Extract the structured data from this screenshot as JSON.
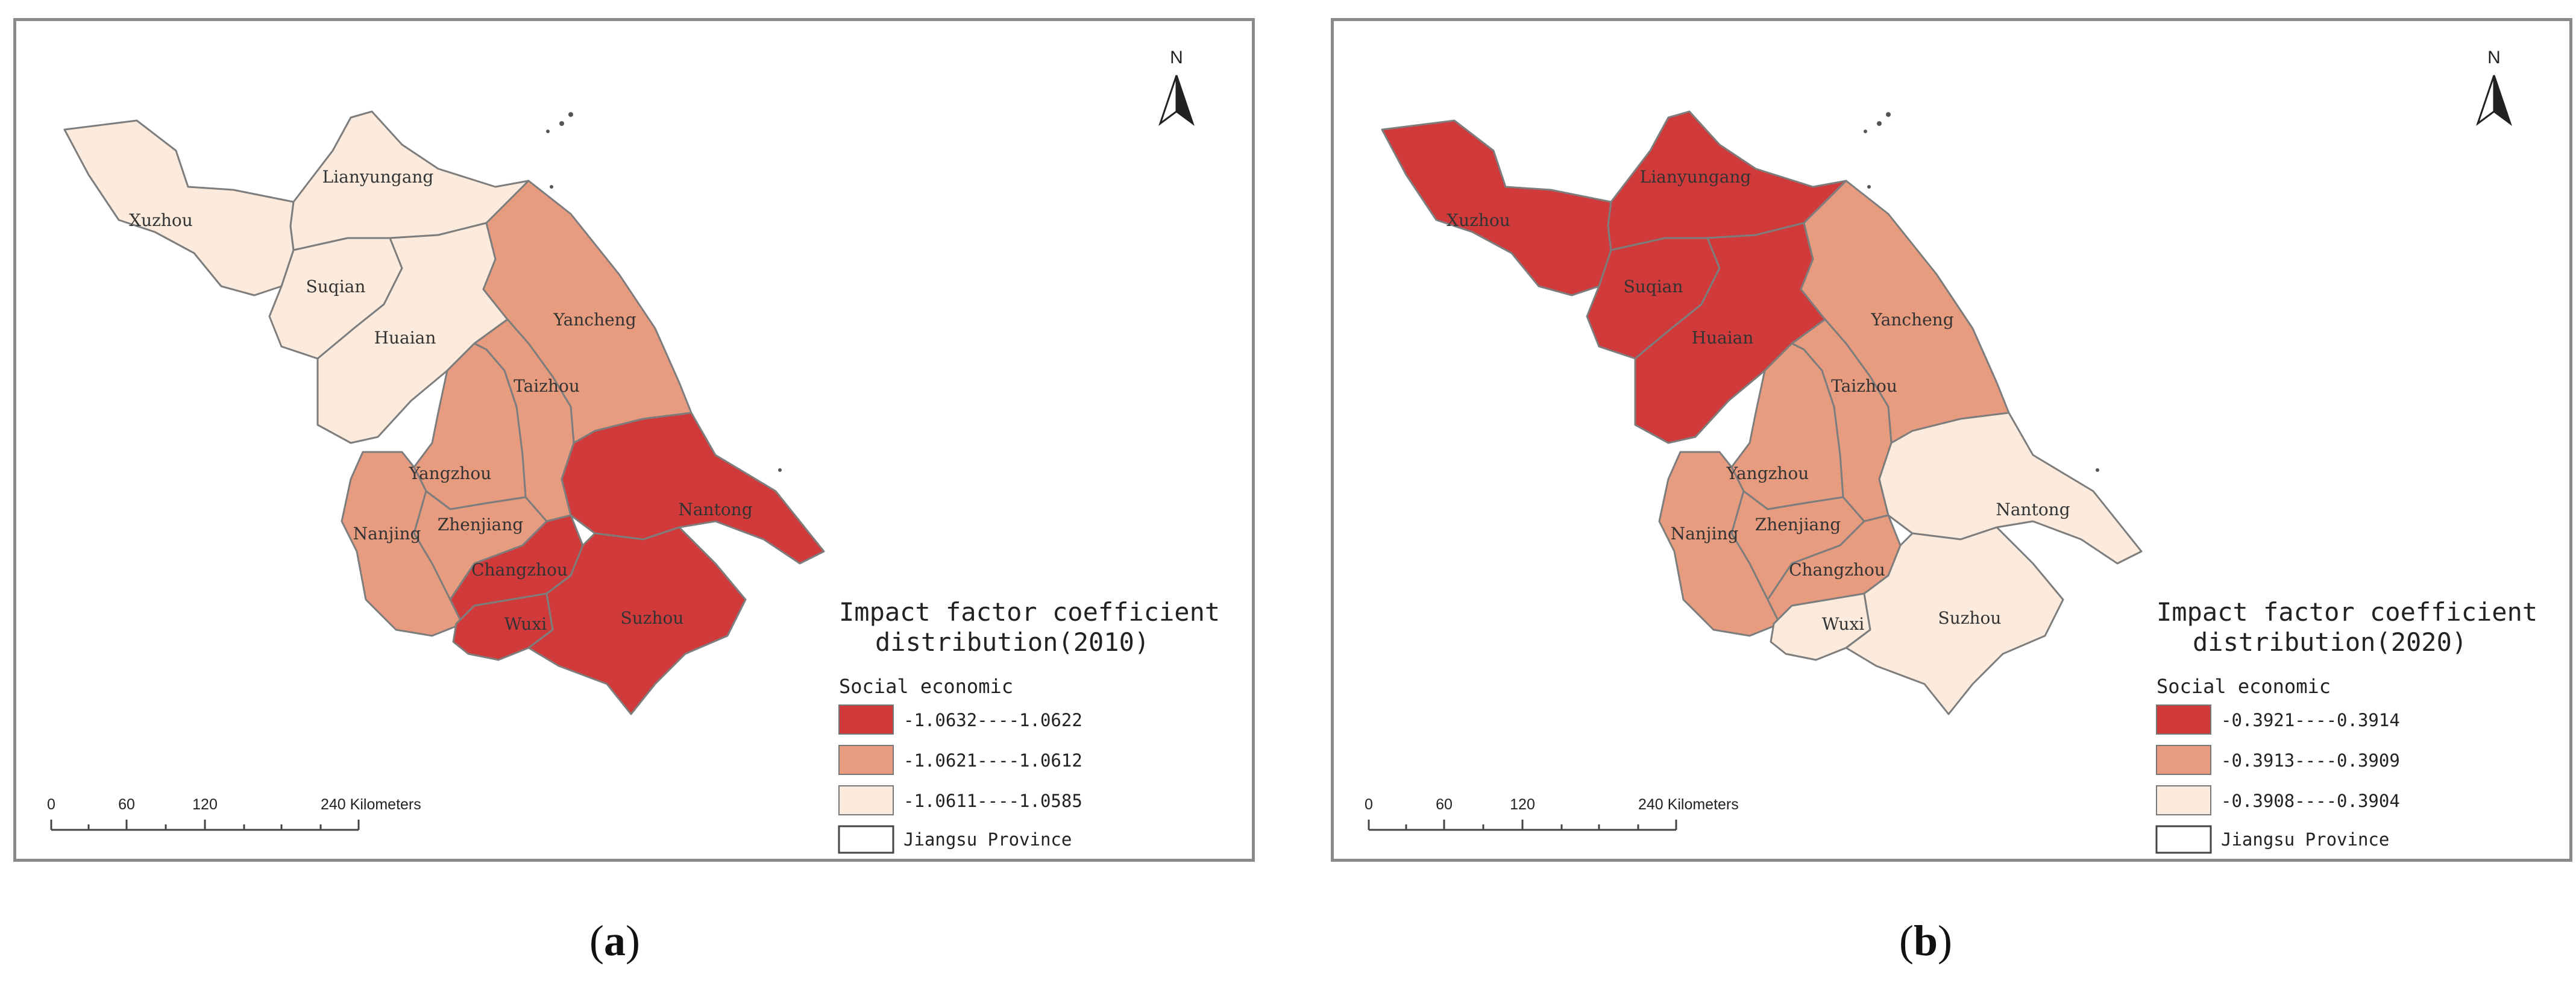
{
  "panels": [
    {
      "id": "a",
      "label": "a",
      "legend_title_line1": "Impact factor coefficient",
      "legend_title_line2": "distribution(2010)",
      "legend_subtitle": "Social economic",
      "classes": [
        {
          "label": "-1.0632----1.0622",
          "color": "#d13a3a"
        },
        {
          "label": "-1.0621----1.0612",
          "color": "#e79b7f"
        },
        {
          "label": "-1.0611----1.0585",
          "color": "#fcebdc"
        }
      ],
      "boundary_label": "Jiangsu Province",
      "north_label": "N",
      "scale": {
        "ticks": [
          "0",
          "60",
          "120",
          "240 Kilometers"
        ]
      },
      "cities": {
        "Xuzhou": {
          "label": "Xuzhou",
          "class": 2
        },
        "Lianyungang": {
          "label": "Lianyungang",
          "class": 2
        },
        "Suqian": {
          "label": "Suqian",
          "class": 2
        },
        "Huaian": {
          "label": "Huaian",
          "class": 2
        },
        "Yancheng": {
          "label": "Yancheng",
          "class": 1
        },
        "Taizhou": {
          "label": "Taizhou",
          "class": 1
        },
        "Yangzhou": {
          "label": "Yangzhou",
          "class": 1
        },
        "Nanjing": {
          "label": "Nanjing",
          "class": 1
        },
        "Zhenjiang": {
          "label": "Zhenjiang",
          "class": 1
        },
        "Changzhou": {
          "label": "Changzhou",
          "class": 0
        },
        "Wuxi": {
          "label": "Wuxi",
          "class": 0
        },
        "Suzhou": {
          "label": "Suzhou",
          "class": 0
        },
        "Nantong": {
          "label": "Nantong",
          "class": 0
        }
      }
    },
    {
      "id": "b",
      "label": "b",
      "legend_title_line1": "Impact factor coefficient",
      "legend_title_line2": "distribution(2020)",
      "legend_subtitle": "Social economic",
      "classes": [
        {
          "label": "-0.3921----0.3914",
          "color": "#d13a3a"
        },
        {
          "label": "-0.3913----0.3909",
          "color": "#e79b7f"
        },
        {
          "label": "-0.3908----0.3904",
          "color": "#fcebdc"
        }
      ],
      "boundary_label": "Jiangsu Province",
      "north_label": "N",
      "scale": {
        "ticks": [
          "0",
          "60",
          "120",
          "240 Kilometers"
        ]
      },
      "cities": {
        "Xuzhou": {
          "label": "Xuzhou",
          "class": 0
        },
        "Lianyungang": {
          "label": "Lianyungang",
          "class": 0
        },
        "Suqian": {
          "label": "Suqian",
          "class": 0
        },
        "Huaian": {
          "label": "Huaian",
          "class": 0
        },
        "Yancheng": {
          "label": "Yancheng",
          "class": 1
        },
        "Taizhou": {
          "label": "Taizhou",
          "class": 1
        },
        "Yangzhou": {
          "label": "Yangzhou",
          "class": 1
        },
        "Nanjing": {
          "label": "Nanjing",
          "class": 1
        },
        "Zhenjiang": {
          "label": "Zhenjiang",
          "class": 1
        },
        "Changzhou": {
          "label": "Changzhou",
          "class": 1
        },
        "Wuxi": {
          "label": "Wuxi",
          "class": 2
        },
        "Suzhou": {
          "label": "Suzhou",
          "class": 2
        },
        "Nantong": {
          "label": "Nantong",
          "class": 2
        }
      }
    }
  ]
}
